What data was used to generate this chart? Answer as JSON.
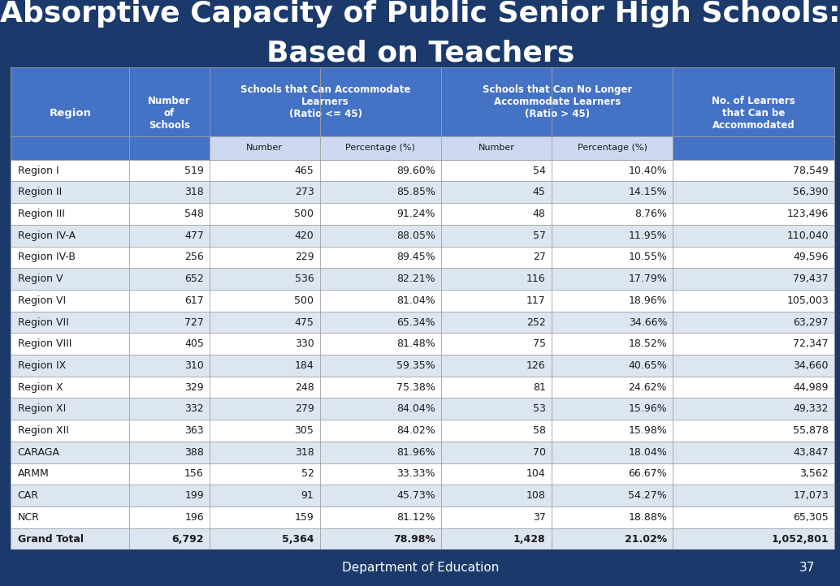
{
  "title_line1": "Absorptive Capacity of Public Senior High Schools:",
  "title_line2": "Based on Teachers",
  "title_bg": "#1b3a6b",
  "title_color": "#ffffff",
  "header_bg": "#4472c4",
  "header_text_color": "#ffffff",
  "subheader_bg": "#ccd9f0",
  "subheader_text_color": "#1a1a1a",
  "row_bg_odd": "#ffffff",
  "row_bg_even": "#dce6f1",
  "row_text_color": "#1a1a1a",
  "footer_bg": "#1b3a6b",
  "footer_text": "Department of Education",
  "footer_page": "37",
  "regions": [
    "Region I",
    "Region II",
    "Region III",
    "Region IV-A",
    "Region IV-B",
    "Region V",
    "Region VI",
    "Region VII",
    "Region VIII",
    "Region IX",
    "Region X",
    "Region XI",
    "Region XII",
    "CARAGA",
    "ARMM",
    "CAR",
    "NCR",
    "Grand Total"
  ],
  "num_schools": [
    "519",
    "318",
    "548",
    "477",
    "256",
    "652",
    "617",
    "727",
    "405",
    "310",
    "329",
    "332",
    "363",
    "388",
    "156",
    "199",
    "196",
    "6,792"
  ],
  "can_accom_num": [
    "465",
    "273",
    "500",
    "420",
    "229",
    "536",
    "500",
    "475",
    "330",
    "184",
    "248",
    "279",
    "305",
    "318",
    "52",
    "91",
    "159",
    "5,364"
  ],
  "can_accom_pct": [
    "89.60%",
    "85.85%",
    "91.24%",
    "88.05%",
    "89.45%",
    "82.21%",
    "81.04%",
    "65.34%",
    "81.48%",
    "59.35%",
    "75.38%",
    "84.04%",
    "84.02%",
    "81.96%",
    "33.33%",
    "45.73%",
    "81.12%",
    "78.98%"
  ],
  "no_longer_num": [
    "54",
    "45",
    "48",
    "57",
    "27",
    "116",
    "117",
    "252",
    "75",
    "126",
    "81",
    "53",
    "58",
    "70",
    "104",
    "108",
    "37",
    "1,428"
  ],
  "no_longer_pct": [
    "10.40%",
    "14.15%",
    "8.76%",
    "11.95%",
    "10.55%",
    "17.79%",
    "18.96%",
    "34.66%",
    "18.52%",
    "40.65%",
    "24.62%",
    "15.96%",
    "15.98%",
    "18.04%",
    "66.67%",
    "54.27%",
    "18.88%",
    "21.02%"
  ],
  "learners_accom": [
    "78,549",
    "56,390",
    "123,496",
    "110,040",
    "49,596",
    "79,437",
    "105,003",
    "63,297",
    "72,347",
    "34,660",
    "44,989",
    "49,332",
    "55,878",
    "43,847",
    "3,562",
    "17,073",
    "65,305",
    "1,052,801"
  ]
}
